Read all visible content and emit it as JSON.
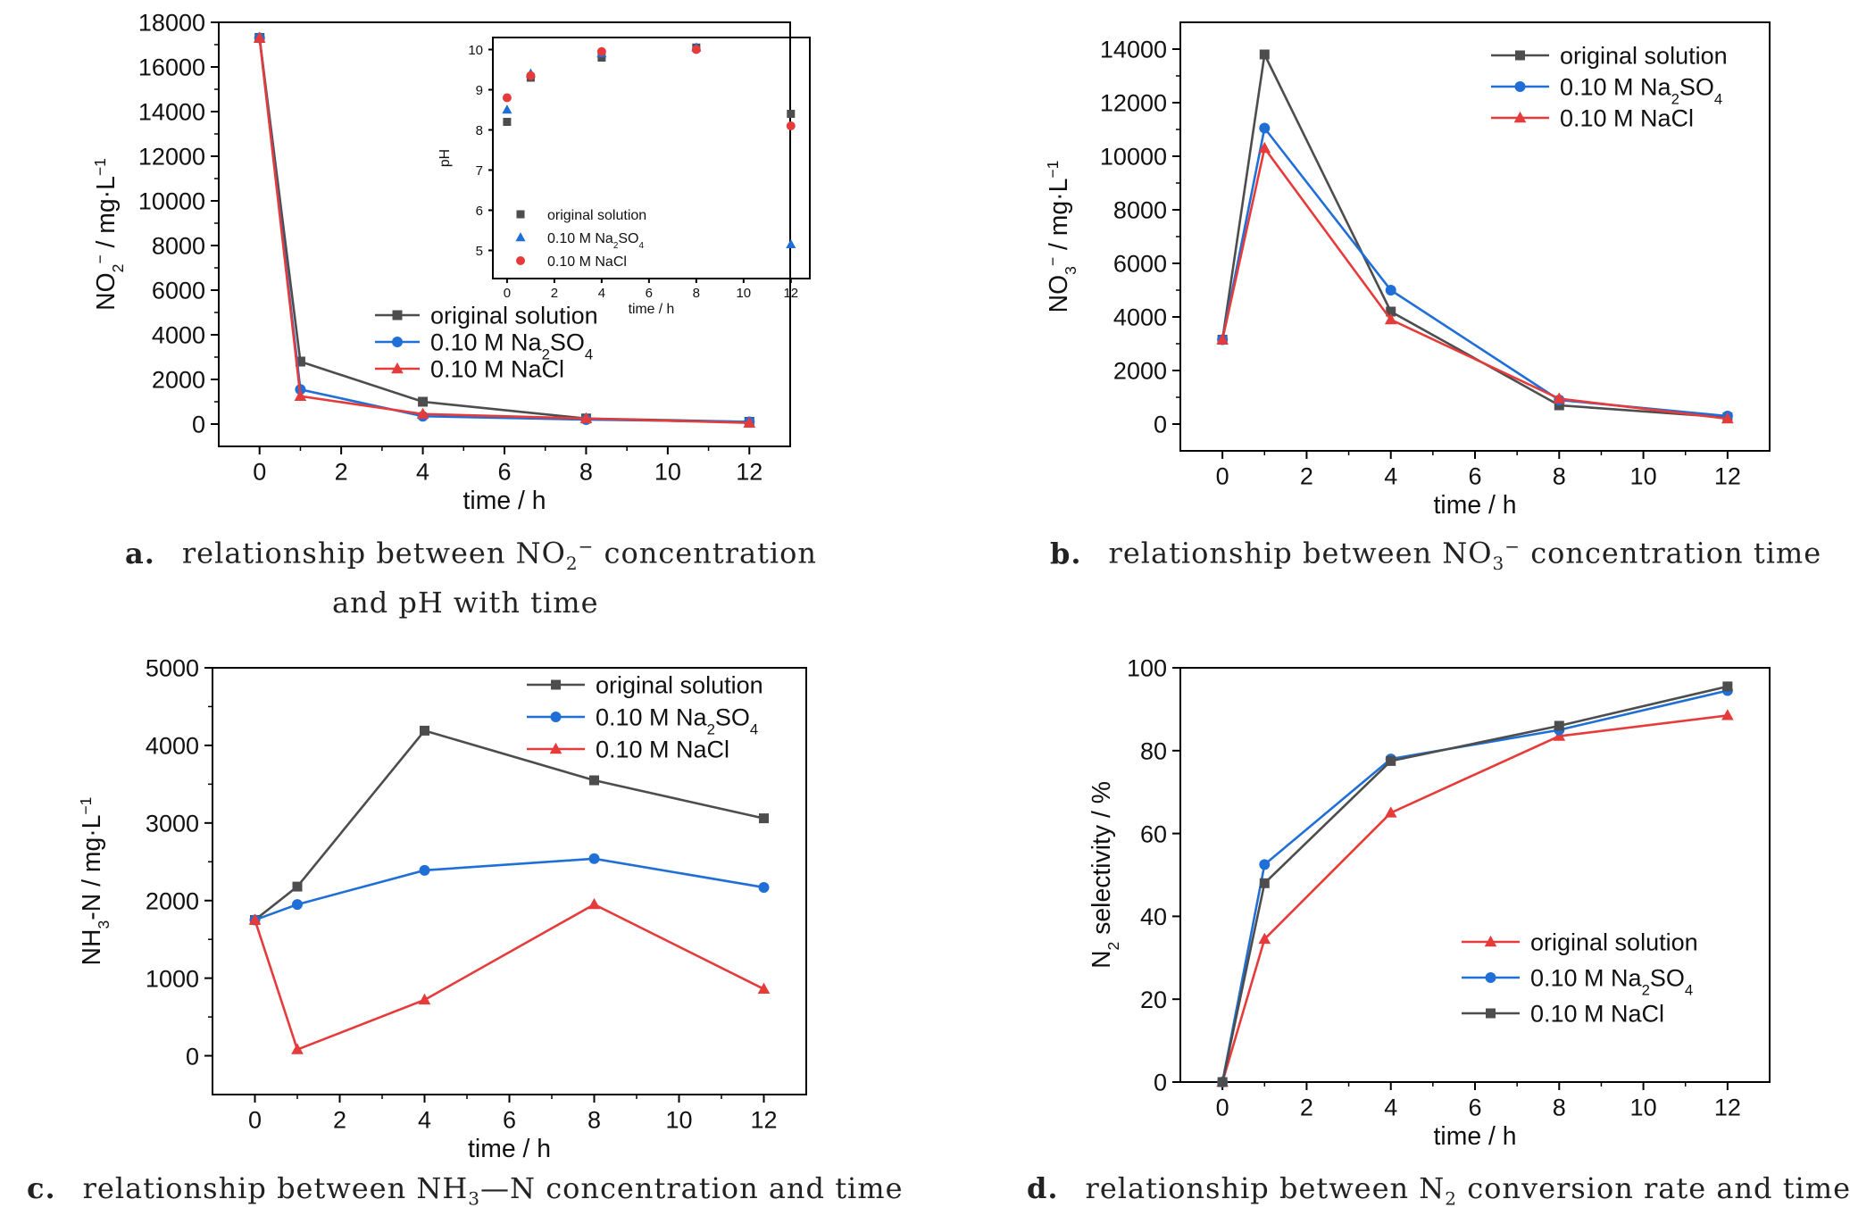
{
  "colors": {
    "original": "#4d4d4d",
    "na2so4": "#1f6fd6",
    "nacl": "#e63b3b",
    "axis": "#000000"
  },
  "captions": {
    "a_letter": "a.",
    "a_line1_pre": "relationship between NO",
    "a_line1_sub": "2",
    "a_line1_sup": "−",
    "a_line1_post": " concentration",
    "a_line2": "and pH with time",
    "b_letter": "b.",
    "b_pre": "relationship between NO",
    "b_sub": "3",
    "b_sup": "−",
    "b_post": " concentration time",
    "c_letter": "c.",
    "c_pre": "relationship between NH",
    "c_sub": "3",
    "c_post": "—N concentration and time",
    "d_letter": "d.",
    "d_pre": "relationship between N",
    "d_sub": "2",
    "d_post": " conversion rate and time"
  },
  "chart_data": [
    {
      "id": "a",
      "type": "line",
      "xlabel": "time / h",
      "ylabel": "NO₂⁻ / mg·L⁻¹",
      "xlim": [
        -1,
        13
      ],
      "ylim": [
        -1000,
        18000
      ],
      "xticks": [
        0,
        2,
        4,
        6,
        8,
        10,
        12
      ],
      "yticks": [
        0,
        2000,
        4000,
        6000,
        8000,
        10000,
        12000,
        14000,
        16000,
        18000
      ],
      "legend_position": "middle-center",
      "series": [
        {
          "name": "original solution",
          "marker": "square",
          "color_key": "original",
          "x": [
            0,
            1,
            4,
            8,
            12
          ],
          "y": [
            17300,
            2800,
            1000,
            250,
            100
          ]
        },
        {
          "name": "0.10 M Na₂SO₄",
          "marker": "circle",
          "color_key": "na2so4",
          "x": [
            0,
            1,
            4,
            8,
            12
          ],
          "y": [
            17300,
            1550,
            350,
            200,
            100
          ]
        },
        {
          "name": "0.10 M NaCl",
          "marker": "triangle",
          "color_key": "nacl",
          "x": [
            0,
            1,
            4,
            8,
            12
          ],
          "y": [
            17300,
            1250,
            450,
            250,
            50
          ]
        }
      ],
      "inset": {
        "type": "scatter",
        "xlabel": "time / h",
        "ylabel": "pH",
        "xlim": [
          -0.6,
          12.8
        ],
        "ylim": [
          4.3,
          10.3
        ],
        "xticks": [
          0,
          2,
          4,
          6,
          8,
          10,
          12
        ],
        "yticks": [
          5,
          6,
          7,
          8,
          9,
          10
        ],
        "legend_position": "lower-left",
        "series": [
          {
            "name": "original solution",
            "marker": "square",
            "color_key": "original",
            "x": [
              0,
              1,
              4,
              8,
              12
            ],
            "y": [
              8.2,
              9.3,
              9.8,
              10.05,
              8.4
            ]
          },
          {
            "name": "0.10 M Na₂SO₄",
            "marker": "triangle",
            "color_key": "na2so4",
            "x": [
              0,
              1,
              4,
              8,
              12
            ],
            "y": [
              8.5,
              9.4,
              9.9,
              10.05,
              5.15
            ]
          },
          {
            "name": "0.10 M NaCl",
            "marker": "circle",
            "color_key": "nacl",
            "x": [
              0,
              1,
              4,
              8,
              12
            ],
            "y": [
              8.8,
              9.35,
              9.95,
              10.0,
              8.1
            ]
          }
        ]
      }
    },
    {
      "id": "b",
      "type": "line",
      "xlabel": "time / h",
      "ylabel": "NO₃⁻ / mg·L⁻¹",
      "xlim": [
        -1,
        13
      ],
      "ylim": [
        -1000,
        15000
      ],
      "xticks": [
        0,
        2,
        4,
        6,
        8,
        10,
        12
      ],
      "yticks": [
        0,
        2000,
        4000,
        6000,
        8000,
        10000,
        12000,
        14000
      ],
      "legend_position": "top-right",
      "series": [
        {
          "name": "original solution",
          "marker": "square",
          "color_key": "original",
          "x": [
            0,
            1,
            4,
            8,
            12
          ],
          "y": [
            3150,
            13800,
            4200,
            700,
            250
          ]
        },
        {
          "name": "0.10 M Na₂SO₄",
          "marker": "circle",
          "color_key": "na2so4",
          "x": [
            0,
            1,
            4,
            8,
            12
          ],
          "y": [
            3150,
            11050,
            5000,
            900,
            300
          ]
        },
        {
          "name": "0.10 M NaCl",
          "marker": "triangle",
          "color_key": "nacl",
          "x": [
            0,
            1,
            4,
            8,
            12
          ],
          "y": [
            3150,
            10300,
            3900,
            950,
            200
          ]
        }
      ]
    },
    {
      "id": "c",
      "type": "line",
      "xlabel": "time / h",
      "ylabel": "NH₃-N / mg·L⁻¹",
      "xlim": [
        -1,
        13
      ],
      "ylim": [
        -500,
        5000
      ],
      "xticks": [
        0,
        2,
        4,
        6,
        8,
        10,
        12
      ],
      "yticks": [
        0,
        1000,
        2000,
        3000,
        4000,
        5000
      ],
      "legend_position": "top-right",
      "series": [
        {
          "name": "original solution",
          "marker": "square",
          "color_key": "original",
          "x": [
            0,
            1,
            4,
            8,
            12
          ],
          "y": [
            1750,
            2180,
            4190,
            3550,
            3060
          ]
        },
        {
          "name": "0.10 M Na₂SO₄",
          "marker": "circle",
          "color_key": "na2so4",
          "x": [
            0,
            1,
            4,
            8,
            12
          ],
          "y": [
            1750,
            1950,
            2390,
            2540,
            2170
          ]
        },
        {
          "name": "0.10 M NaCl",
          "marker": "triangle",
          "color_key": "nacl",
          "x": [
            0,
            1,
            4,
            8,
            12
          ],
          "y": [
            1750,
            80,
            720,
            1950,
            860
          ]
        }
      ]
    },
    {
      "id": "d",
      "type": "line",
      "xlabel": "time / h",
      "ylabel": "N₂ selectivity / %",
      "xlim": [
        -1,
        13
      ],
      "ylim": [
        0,
        100
      ],
      "xticks": [
        0,
        2,
        4,
        6,
        8,
        10,
        12
      ],
      "yticks": [
        0,
        20,
        40,
        60,
        80,
        100
      ],
      "legend_position": "lower-right",
      "series": [
        {
          "name": "original solution",
          "marker": "triangle",
          "color_key": "nacl",
          "x": [
            0,
            1,
            4,
            8,
            12
          ],
          "y": [
            0,
            34.5,
            65,
            83.5,
            88.5
          ]
        },
        {
          "name": "0.10 M Na₂SO₄",
          "marker": "circle",
          "color_key": "na2so4",
          "x": [
            0,
            1,
            4,
            8,
            12
          ],
          "y": [
            0,
            52.5,
            78,
            85,
            94.5
          ]
        },
        {
          "name": "0.10 M NaCl",
          "marker": "square",
          "color_key": "original",
          "x": [
            0,
            1,
            4,
            8,
            12
          ],
          "y": [
            0,
            48,
            77.5,
            86,
            95.5
          ]
        }
      ]
    }
  ]
}
